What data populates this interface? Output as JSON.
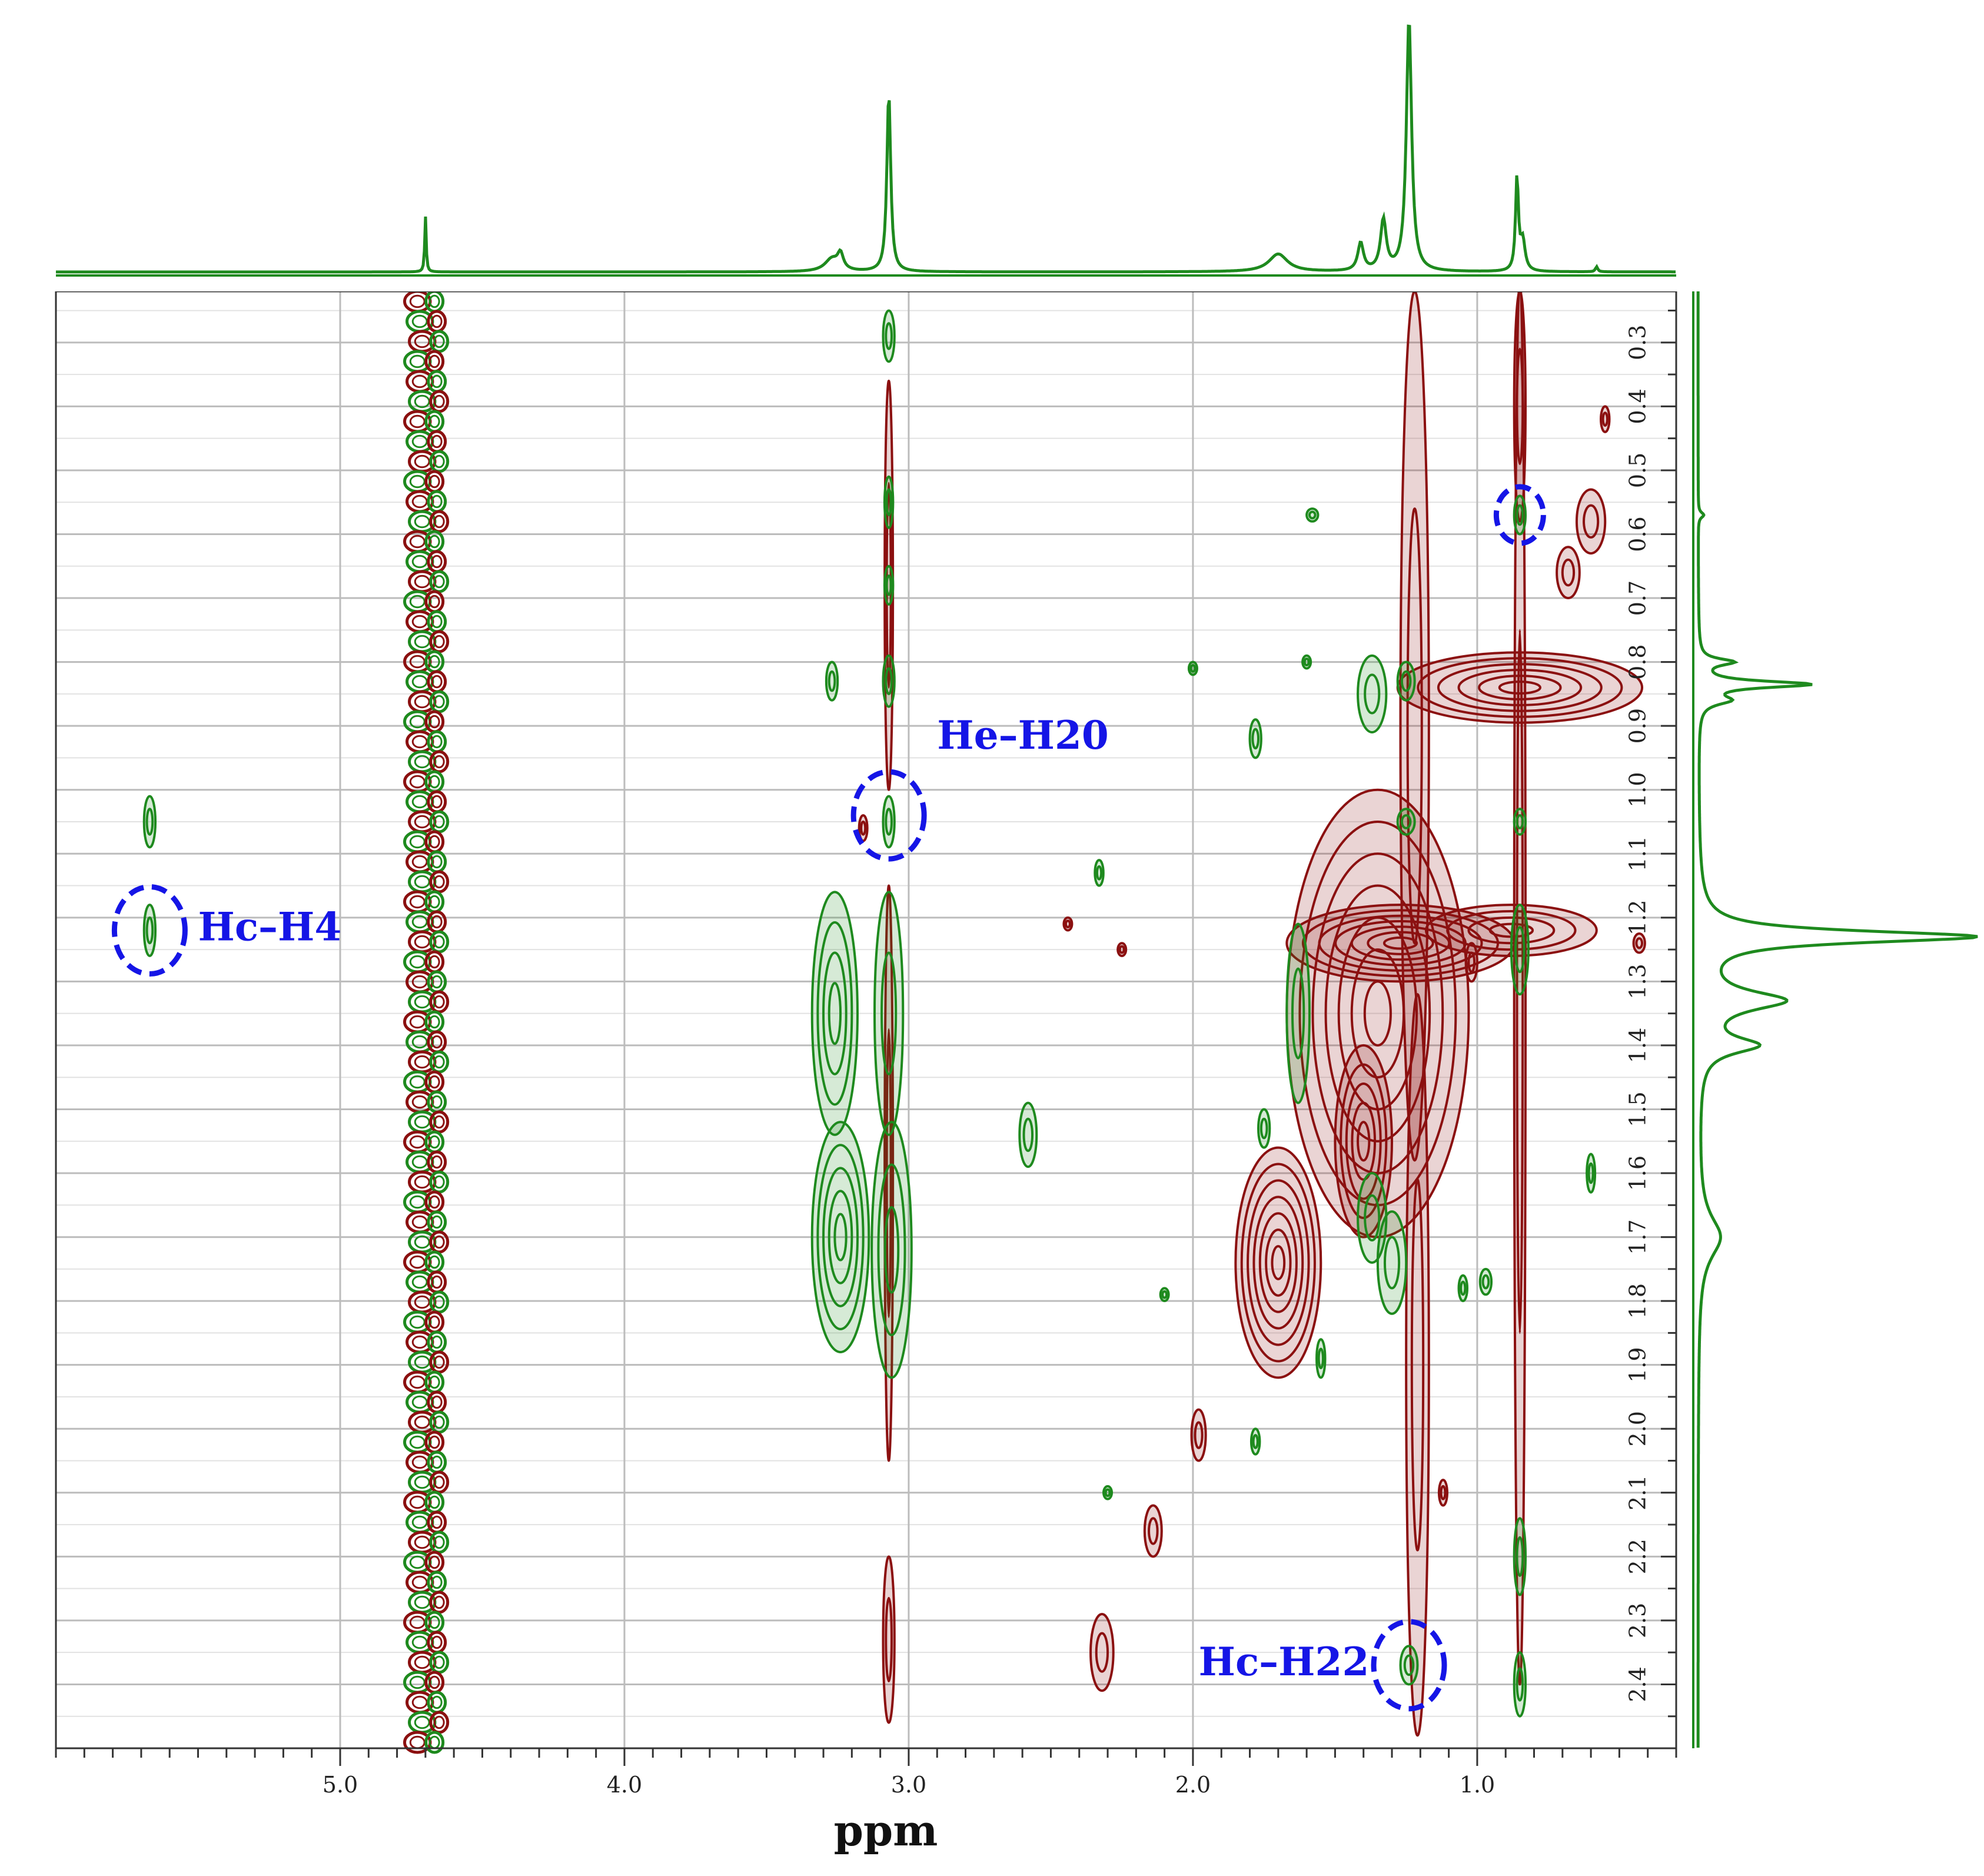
{
  "chart_data": {
    "type": "heatmap",
    "subtype": "2D NMR (NOESY) contour plot with 1D projections",
    "title": "",
    "xlabel": "ppm",
    "ylabel": "",
    "x_axis": {
      "range": [
        6.0,
        0.3
      ],
      "reversed": true,
      "major_ticks": [
        5.0,
        4.0,
        3.0,
        2.0,
        1.0
      ],
      "major_tick_labels": [
        "5.0",
        "4.0",
        "3.0",
        "2.0",
        "1.0"
      ],
      "minor_tick_step": 0.1
    },
    "y_axis": {
      "range": [
        0.22,
        2.5
      ],
      "reversed": true,
      "ticks": [
        0.3,
        0.4,
        0.5,
        0.6,
        0.7,
        0.8,
        0.9,
        1.0,
        1.1,
        1.2,
        1.3,
        1.4,
        1.5,
        1.6,
        1.7,
        1.8,
        1.9,
        2.0,
        2.1,
        2.2,
        2.3,
        2.4
      ],
      "tick_labels": [
        "0.3",
        "0.4",
        "0.5",
        "0.6",
        "0.7",
        "0.8",
        "0.9",
        "1.0",
        "1.1",
        "1.2",
        "1.3",
        "1.4",
        "1.5",
        "1.6",
        "1.7",
        "1.8",
        "1.9",
        "2.0",
        "2.1",
        "2.2",
        "2.3",
        "2.4"
      ],
      "position": "right"
    },
    "grid": true,
    "colors": {
      "positive_contour": "#1e8a1e",
      "negative_contour": "#8b1010",
      "projection": "#1e8a1e",
      "annotation": "#1515e6",
      "grid": "#c8c8c8"
    },
    "projection_top": {
      "peaks": [
        {
          "ppm": 4.7,
          "height": 0.22,
          "width": 0.003
        },
        {
          "ppm": 3.27,
          "height": 0.05,
          "width": 0.03
        },
        {
          "ppm": 3.24,
          "height": 0.06,
          "width": 0.012
        },
        {
          "ppm": 3.07,
          "height": 0.71,
          "width": 0.008
        },
        {
          "ppm": 1.7,
          "height": 0.07,
          "width": 0.04
        },
        {
          "ppm": 1.41,
          "height": 0.11,
          "width": 0.012
        },
        {
          "ppm": 1.33,
          "height": 0.2,
          "width": 0.012
        },
        {
          "ppm": 1.24,
          "height": 1.0,
          "width": 0.011
        },
        {
          "ppm": 0.86,
          "height": 0.37,
          "width": 0.006
        },
        {
          "ppm": 0.84,
          "height": 0.12,
          "width": 0.01
        },
        {
          "ppm": 0.58,
          "height": 0.02,
          "width": 0.005
        }
      ]
    },
    "projection_right": {
      "peaks": [
        {
          "ppm": 0.8,
          "height": 0.12,
          "width": 0.006
        },
        {
          "ppm": 0.835,
          "height": 0.4,
          "width": 0.006
        },
        {
          "ppm": 0.86,
          "height": 0.1,
          "width": 0.008
        },
        {
          "ppm": 1.23,
          "height": 1.0,
          "width": 0.011
        },
        {
          "ppm": 1.33,
          "height": 0.3,
          "width": 0.018
        },
        {
          "ppm": 1.4,
          "height": 0.2,
          "width": 0.015
        },
        {
          "ppm": 1.7,
          "height": 0.08,
          "width": 0.04
        },
        {
          "ppm": 0.57,
          "height": 0.02,
          "width": 0.005
        }
      ]
    },
    "contours": {
      "positive": [
        {
          "x": 5.67,
          "y": 1.05,
          "w": 0.02,
          "h": 0.04
        },
        {
          "x": 5.67,
          "y": 1.22,
          "w": 0.02,
          "h": 0.04
        },
        {
          "x": 3.07,
          "y": 0.29,
          "w": 0.02,
          "h": 0.04
        },
        {
          "x": 3.07,
          "y": 0.55,
          "w": 0.015,
          "h": 0.04
        },
        {
          "x": 3.07,
          "y": 0.68,
          "w": 0.015,
          "h": 0.03
        },
        {
          "x": 3.07,
          "y": 0.83,
          "w": 0.02,
          "h": 0.04
        },
        {
          "x": 3.07,
          "y": 1.05,
          "w": 0.02,
          "h": 0.04
        },
        {
          "x": 3.27,
          "y": 0.83,
          "w": 0.02,
          "h": 0.03
        },
        {
          "x": 3.07,
          "y": 1.35,
          "w": 0.05,
          "h": 0.19
        },
        {
          "x": 3.26,
          "y": 1.35,
          "w": 0.08,
          "h": 0.19
        },
        {
          "x": 3.24,
          "y": 1.7,
          "w": 0.1,
          "h": 0.18
        },
        {
          "x": 3.06,
          "y": 1.72,
          "w": 0.07,
          "h": 0.2
        },
        {
          "x": 2.58,
          "y": 1.54,
          "w": 0.03,
          "h": 0.05
        },
        {
          "x": 2.33,
          "y": 1.13,
          "w": 0.015,
          "h": 0.02
        },
        {
          "x": 1.63,
          "y": 1.35,
          "w": 0.04,
          "h": 0.14
        },
        {
          "x": 1.78,
          "y": 0.92,
          "w": 0.02,
          "h": 0.03
        },
        {
          "x": 1.58,
          "y": 0.57,
          "w": 0.02,
          "h": 0.01
        },
        {
          "x": 1.75,
          "y": 1.53,
          "w": 0.02,
          "h": 0.03
        },
        {
          "x": 1.3,
          "y": 1.74,
          "w": 0.05,
          "h": 0.08
        },
        {
          "x": 1.37,
          "y": 1.67,
          "w": 0.05,
          "h": 0.07
        },
        {
          "x": 1.37,
          "y": 0.85,
          "w": 0.05,
          "h": 0.06
        },
        {
          "x": 1.25,
          "y": 0.83,
          "w": 0.03,
          "h": 0.03
        },
        {
          "x": 1.25,
          "y": 1.05,
          "w": 0.03,
          "h": 0.02
        },
        {
          "x": 0.85,
          "y": 0.57,
          "w": 0.02,
          "h": 0.03
        },
        {
          "x": 0.85,
          "y": 1.05,
          "w": 0.02,
          "h": 0.02
        },
        {
          "x": 0.85,
          "y": 1.25,
          "w": 0.03,
          "h": 0.07
        },
        {
          "x": 0.85,
          "y": 2.2,
          "w": 0.02,
          "h": 0.06
        },
        {
          "x": 0.85,
          "y": 2.4,
          "w": 0.02,
          "h": 0.05
        },
        {
          "x": 1.24,
          "y": 2.37,
          "w": 0.03,
          "h": 0.03
        },
        {
          "x": 1.78,
          "y": 2.02,
          "w": 0.015,
          "h": 0.02
        },
        {
          "x": 1.55,
          "y": 1.89,
          "w": 0.015,
          "h": 0.03
        },
        {
          "x": 1.05,
          "y": 1.78,
          "w": 0.015,
          "h": 0.02
        },
        {
          "x": 0.97,
          "y": 1.77,
          "w": 0.02,
          "h": 0.02
        },
        {
          "x": 0.6,
          "y": 1.6,
          "w": 0.01,
          "h": 0.03
        },
        {
          "x": 2.1,
          "y": 1.79,
          "w": 0.01,
          "h": 0.01
        },
        {
          "x": 2.0,
          "y": 0.81,
          "w": 0.01,
          "h": 0.01
        },
        {
          "x": 1.6,
          "y": 0.8,
          "w": 0.01,
          "h": 0.01
        },
        {
          "x": 2.3,
          "y": 2.1,
          "w": 0.01,
          "h": 0.01
        }
      ],
      "negative": [
        {
          "x": 1.22,
          "y": 0.9,
          "w": 0.05,
          "h": 0.68
        },
        {
          "x": 1.21,
          "y": 1.9,
          "w": 0.04,
          "h": 0.58
        },
        {
          "x": 0.85,
          "y": 1.3,
          "w": 0.02,
          "h": 1.1
        },
        {
          "x": 0.85,
          "y": 0.4,
          "w": 0.02,
          "h": 0.18
        },
        {
          "x": 3.07,
          "y": 0.68,
          "w": 0.007,
          "h": 0.32
        },
        {
          "x": 3.07,
          "y": 1.6,
          "w": 0.007,
          "h": 0.45
        },
        {
          "x": 3.07,
          "y": 2.33,
          "w": 0.02,
          "h": 0.13
        },
        {
          "x": 1.27,
          "y": 1.24,
          "w": 0.4,
          "h": 0.06
        },
        {
          "x": 0.85,
          "y": 0.84,
          "w": 0.43,
          "h": 0.055
        },
        {
          "x": 1.35,
          "y": 1.35,
          "w": 0.32,
          "h": 0.35
        },
        {
          "x": 1.7,
          "y": 1.74,
          "w": 0.15,
          "h": 0.18
        },
        {
          "x": 1.4,
          "y": 1.55,
          "w": 0.1,
          "h": 0.15
        },
        {
          "x": 0.6,
          "y": 0.58,
          "w": 0.05,
          "h": 0.05
        },
        {
          "x": 0.68,
          "y": 0.66,
          "w": 0.04,
          "h": 0.04
        },
        {
          "x": 0.88,
          "y": 1.22,
          "w": 0.3,
          "h": 0.04
        },
        {
          "x": 2.32,
          "y": 2.35,
          "w": 0.04,
          "h": 0.06
        },
        {
          "x": 2.14,
          "y": 2.16,
          "w": 0.03,
          "h": 0.04
        },
        {
          "x": 1.98,
          "y": 2.01,
          "w": 0.025,
          "h": 0.04
        },
        {
          "x": 2.44,
          "y": 1.21,
          "w": 0.01,
          "h": 0.01
        },
        {
          "x": 2.25,
          "y": 1.25,
          "w": 0.01,
          "h": 0.01
        },
        {
          "x": 1.02,
          "y": 1.27,
          "w": 0.02,
          "h": 0.03
        },
        {
          "x": 0.43,
          "y": 1.24,
          "w": 0.02,
          "h": 0.015
        },
        {
          "x": 0.55,
          "y": 0.42,
          "w": 0.015,
          "h": 0.02
        },
        {
          "x": 1.12,
          "y": 2.1,
          "w": 0.01,
          "h": 0.02
        },
        {
          "x": 3.16,
          "y": 1.06,
          "w": 0.01,
          "h": 0.02
        }
      ],
      "diagonal_strips": [
        {
          "x": 4.72,
          "y": 1.36,
          "w": 0.045,
          "h": 1.14
        },
        {
          "x": 4.66,
          "y": 1.36,
          "w": 0.03,
          "h": 1.14
        }
      ]
    },
    "annotations": [
      {
        "label": "Hc–H4",
        "x": 5.67,
        "y": 1.22,
        "label_x": 5.5,
        "label_y": 1.22,
        "anchor": "start"
      },
      {
        "label": "He–H20",
        "x": 3.07,
        "y": 1.04,
        "label_x": 2.9,
        "label_y": 0.92,
        "anchor": "start"
      },
      {
        "label": "Hc–H22",
        "x": 1.24,
        "y": 2.37,
        "label_x": 1.38,
        "label_y": 2.37,
        "anchor": "end"
      },
      {
        "label": "",
        "x": 0.85,
        "y": 0.57,
        "label_x": 0.85,
        "label_y": 0.57,
        "anchor": "middle"
      }
    ]
  }
}
